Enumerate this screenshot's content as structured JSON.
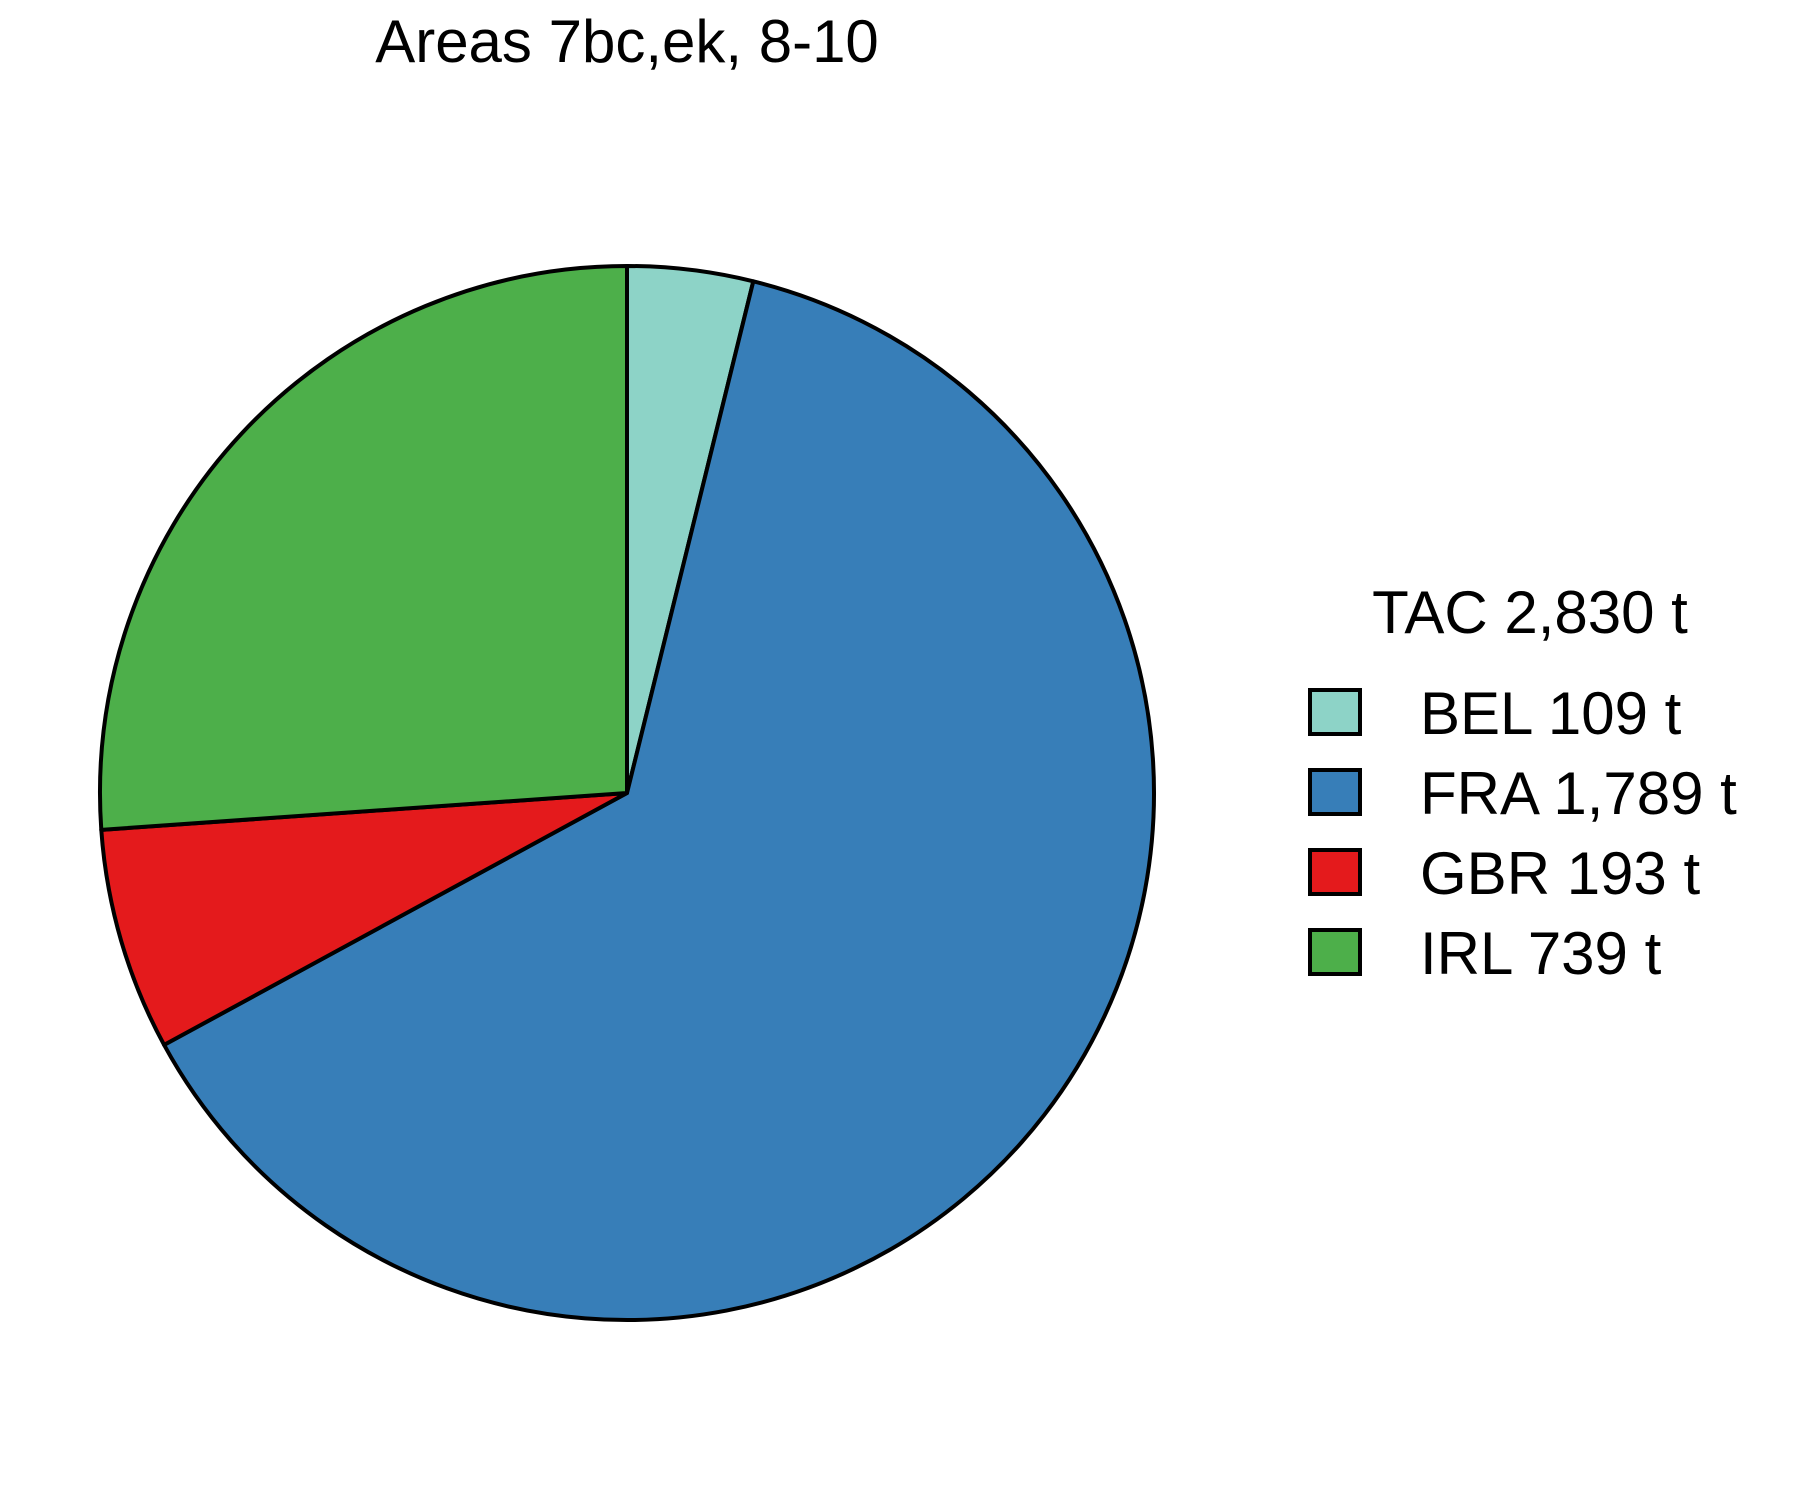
{
  "chart_data": {
    "type": "pie",
    "title": "Areas 7bc,ek, 8-10",
    "legend_title": "TAC 2,830 t",
    "legend_position": "right",
    "total": 2830,
    "unit": "t",
    "start_angle": "top",
    "direction": "clockwise",
    "slices": [
      {
        "label": "BEL",
        "value": 109,
        "legend_label": "BEL 109 t",
        "color": "#8DD3C7"
      },
      {
        "label": "FRA",
        "value": 1789,
        "legend_label": "FRA 1,789 t",
        "color": "#377EB8"
      },
      {
        "label": "GBR",
        "value": 193,
        "legend_label": "GBR 193 t",
        "color": "#E41A1C"
      },
      {
        "label": "IRL",
        "value": 739,
        "legend_label": "IRL 739 t",
        "color": "#4DAF4A"
      }
    ]
  }
}
